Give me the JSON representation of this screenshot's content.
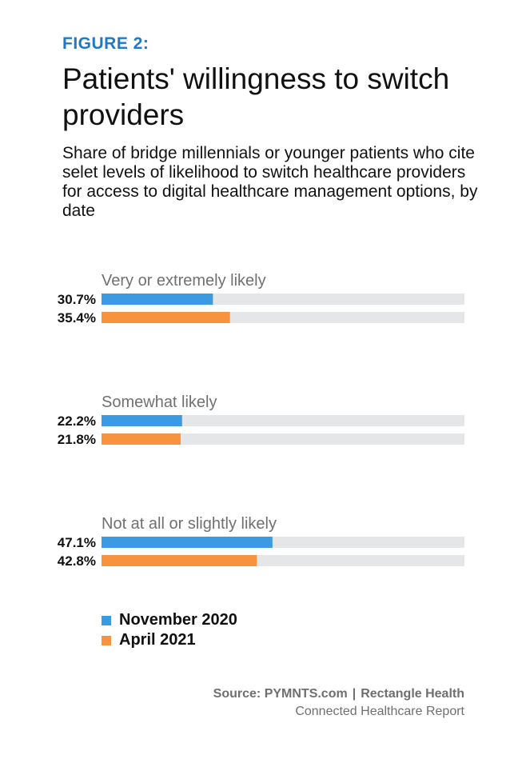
{
  "figure_label": "FIGURE 2:",
  "title": "Patients' willingness to switch providers",
  "subtitle": "Share of bridge millennials or younger patients who cite selet levels of likelihood to switch healthcare providers for access to digital healthcare management options, by date",
  "colors": {
    "accent": "#1f78c8",
    "series_1": "#3a9be0",
    "series_2": "#f7923f",
    "track": "#e5e6e8",
    "group_label": "#707070"
  },
  "chart_data": {
    "type": "bar",
    "orientation": "horizontal",
    "xlim": [
      0,
      100
    ],
    "categories": [
      "Very or extremely likely",
      "Somewhat likely",
      "Not at all or slightly likely"
    ],
    "series": [
      {
        "name": "November 2020",
        "values": [
          30.7,
          22.2,
          47.1
        ],
        "labels": [
          "30.7%",
          "22.2%",
          "47.1%"
        ]
      },
      {
        "name": "April 2021",
        "values": [
          35.4,
          21.8,
          42.8
        ],
        "labels": [
          "35.4%",
          "21.8%",
          "42.8%"
        ]
      }
    ]
  },
  "legend": {
    "items": [
      "November 2020",
      "April 2021"
    ]
  },
  "source": {
    "line1_a": "Source: PYMNTS.com",
    "separator": "|",
    "line1_b": "Rectangle Health",
    "line2": "Connected Healthcare Report"
  }
}
